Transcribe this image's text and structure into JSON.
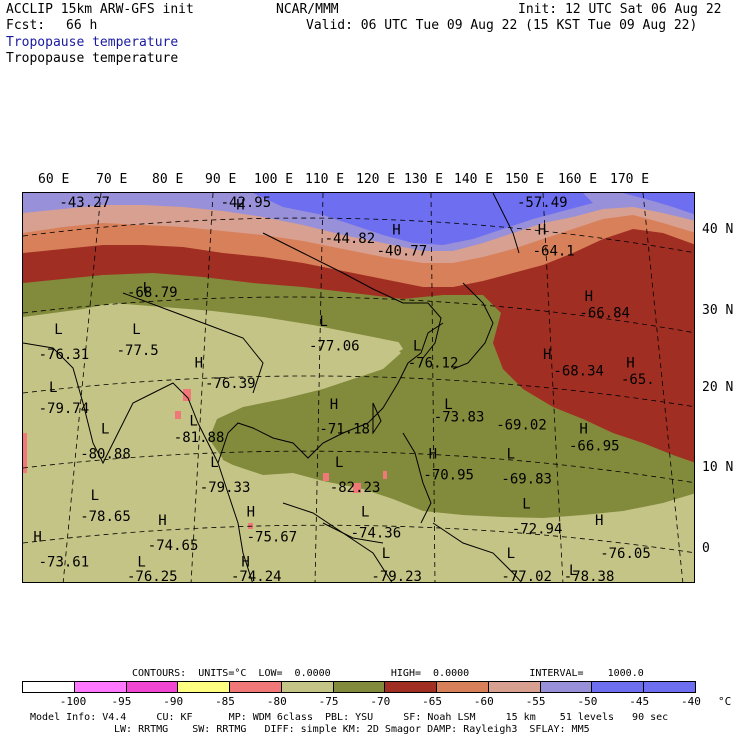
{
  "header": {
    "model_line": "ACCLIP 15km ARW-GFS init",
    "fcst_label": "Fcst:",
    "fcst_value": "66 h",
    "org": "NCAR/MMM",
    "init": "Init: 12 UTC Sat 06 Aug 22",
    "valid": "Valid: 06 UTC Tue 09 Aug 22 (15 KST Tue 09 Aug 22)",
    "field_title_1": "Tropopause temperature",
    "field_title_2": "Tropopause temperature"
  },
  "axes": {
    "lon_labels": [
      "60 E",
      "70 E",
      "80 E",
      "90 E",
      "100 E",
      "110 E",
      "120 E",
      "130 E",
      "140 E",
      "150 E",
      "160 E",
      "170 E"
    ],
    "lat_labels": [
      "40 N",
      "30 N",
      "20 N",
      "10 N",
      "0"
    ]
  },
  "map": {
    "projection": "mercator",
    "field": "tropopause temperature",
    "units": "°C",
    "fill_bands_c": [
      -85,
      -80,
      -75,
      -70,
      -65,
      -60,
      -55,
      -50,
      -45
    ],
    "colors": {
      "lt_minus_85": "#f07878",
      "band_minus_80_minus_75": "#c4c486",
      "band_minus_75_minus_70": "#828a3c",
      "band_minus_70_minus_65": "#a02e22",
      "band_minus_65_minus_60": "#d8805a",
      "band_minus_60_minus_55": "#d8a090",
      "band_minus_55_minus_50": "#9890d8",
      "band_minus_50_minus_45": "#6e6ef0",
      "coastline": "#000000"
    },
    "marker_symbols": [
      "H",
      "L"
    ],
    "point_values": [
      {
        "text": "-43.27",
        "lon": 62,
        "lat": 43.5
      },
      {
        "text": "-42.95",
        "lon": 93,
        "lat": 43.5
      },
      {
        "text": "-57.49",
        "lon": 150,
        "lat": 44
      },
      {
        "text": "-44.82",
        "lon": 113,
        "lat": 39
      },
      {
        "text": "-40.77",
        "lon": 123,
        "lat": 37.5
      },
      {
        "text": "-64.1",
        "lon": 153,
        "lat": 37.5
      },
      {
        "text": "-68.79",
        "lon": 75,
        "lat": 32.5
      },
      {
        "text": "-66.84",
        "lon": 162,
        "lat": 30
      },
      {
        "text": "-77.06",
        "lon": 110,
        "lat": 26
      },
      {
        "text": "-76.31",
        "lon": 58,
        "lat": 25
      },
      {
        "text": "-77.5",
        "lon": 73,
        "lat": 25.5
      },
      {
        "text": "-76.12",
        "lon": 129,
        "lat": 24
      },
      {
        "text": "-68.34",
        "lon": 157,
        "lat": 23
      },
      {
        "text": "-65.",
        "lon": 170,
        "lat": 22
      },
      {
        "text": "-76.39",
        "lon": 90,
        "lat": 21.5
      },
      {
        "text": "-79.74",
        "lon": 58,
        "lat": 18.5
      },
      {
        "text": "-73.83",
        "lon": 134,
        "lat": 17.5
      },
      {
        "text": "-71.18",
        "lon": 112,
        "lat": 16
      },
      {
        "text": "-69.02",
        "lon": 146,
        "lat": 16.5
      },
      {
        "text": "-81.88",
        "lon": 84,
        "lat": 15
      },
      {
        "text": "-66.95",
        "lon": 160,
        "lat": 14
      },
      {
        "text": "-80.88",
        "lon": 66,
        "lat": 13
      },
      {
        "text": "-70.95",
        "lon": 132,
        "lat": 10.5
      },
      {
        "text": "-69.83",
        "lon": 147,
        "lat": 10
      },
      {
        "text": "-79.33",
        "lon": 89,
        "lat": 9
      },
      {
        "text": "-82.23",
        "lon": 114,
        "lat": 9
      },
      {
        "text": "-78.65",
        "lon": 66,
        "lat": 5.5
      },
      {
        "text": "-72.94",
        "lon": 149,
        "lat": 4
      },
      {
        "text": "-74.65",
        "lon": 79,
        "lat": 2
      },
      {
        "text": "-75.67",
        "lon": 98,
        "lat": 3
      },
      {
        "text": "-74.36",
        "lon": 118,
        "lat": 3.5
      },
      {
        "text": "-76.05",
        "lon": 166,
        "lat": 1
      },
      {
        "text": "-73.61",
        "lon": 58,
        "lat": 0
      },
      {
        "text": "-77.02",
        "lon": 147,
        "lat": -2
      },
      {
        "text": "-76.25",
        "lon": 75,
        "lat": -3.5
      },
      {
        "text": "-74.24",
        "lon": 95,
        "lat": -3.5
      },
      {
        "text": "-79.23",
        "lon": 122,
        "lat": -4
      },
      {
        "text": "-78.38",
        "lon": 159,
        "lat": -4
      }
    ],
    "markers": [
      {
        "symbol": "H",
        "lon": 96,
        "lat": 43
      },
      {
        "symbol": "H",
        "lon": 126,
        "lat": 40
      },
      {
        "symbol": "H",
        "lon": 154,
        "lat": 40
      },
      {
        "symbol": "L",
        "lon": 78,
        "lat": 33
      },
      {
        "symbol": "L",
        "lon": 112,
        "lat": 29
      },
      {
        "symbol": "H",
        "lon": 163,
        "lat": 32
      },
      {
        "symbol": "L",
        "lon": 61,
        "lat": 28
      },
      {
        "symbol": "L",
        "lon": 76,
        "lat": 28
      },
      {
        "symbol": "L",
        "lon": 130,
        "lat": 26
      },
      {
        "symbol": "H",
        "lon": 88,
        "lat": 24
      },
      {
        "symbol": "H",
        "lon": 155,
        "lat": 25
      },
      {
        "symbol": "H",
        "lon": 171,
        "lat": 24
      },
      {
        "symbol": "L",
        "lon": 60,
        "lat": 21
      },
      {
        "symbol": "H",
        "lon": 114,
        "lat": 19
      },
      {
        "symbol": "L",
        "lon": 136,
        "lat": 19
      },
      {
        "symbol": "L",
        "lon": 70,
        "lat": 16
      },
      {
        "symbol": "L",
        "lon": 87,
        "lat": 17
      },
      {
        "symbol": "H",
        "lon": 162,
        "lat": 16
      },
      {
        "symbol": "H",
        "lon": 133,
        "lat": 13
      },
      {
        "symbol": "L",
        "lon": 148,
        "lat": 13
      },
      {
        "symbol": "L",
        "lon": 91,
        "lat": 12
      },
      {
        "symbol": "L",
        "lon": 115,
        "lat": 12
      },
      {
        "symbol": "L",
        "lon": 68,
        "lat": 8
      },
      {
        "symbol": "H",
        "lon": 81,
        "lat": 5
      },
      {
        "symbol": "H",
        "lon": 98,
        "lat": 6
      },
      {
        "symbol": "L",
        "lon": 120,
        "lat": 6
      },
      {
        "symbol": "L",
        "lon": 151,
        "lat": 7
      },
      {
        "symbol": "H",
        "lon": 165,
        "lat": 5
      },
      {
        "symbol": "H",
        "lon": 57,
        "lat": 3
      },
      {
        "symbol": "L",
        "lon": 148,
        "lat": 1
      },
      {
        "symbol": "L",
        "lon": 77,
        "lat": 0
      },
      {
        "symbol": "H",
        "lon": 97,
        "lat": 0
      },
      {
        "symbol": "L",
        "lon": 124,
        "lat": 1
      },
      {
        "symbol": "L",
        "lon": 160,
        "lat": -1
      }
    ]
  },
  "footer": {
    "contours_line": "CONTOURS:  UNITS=°C  LOW=  0.0000          HIGH=  0.0000          INTERVAL=    1000.0",
    "colorbar_labels": [
      "-100",
      "-95",
      "-90",
      "-85",
      "-80",
      "-75",
      "-70",
      "-65",
      "-60",
      "-55",
      "-50",
      "-45",
      "-40",
      "°C"
    ],
    "colorbar_colors": [
      "#ffffff",
      "#ff78ff",
      "#f046d2",
      "#ffff82",
      "#f07878",
      "#c4c486",
      "#828a3c",
      "#a02e22",
      "#d8805a",
      "#d8a090",
      "#9890d8",
      "#6e6ef0",
      "#6e6ef0"
    ],
    "model_info_line_1": "Model Info: V4.4     CU: KF      MP: WDM 6class  PBL: YSU     SF: Noah LSM     15 km    51 levels   90 sec",
    "model_info_line_2": "LW: RRTMG    SW: RRTMG   DIFF: simple KM: 2D Smagor DAMP: Rayleigh3  SFLAY: MM5"
  }
}
